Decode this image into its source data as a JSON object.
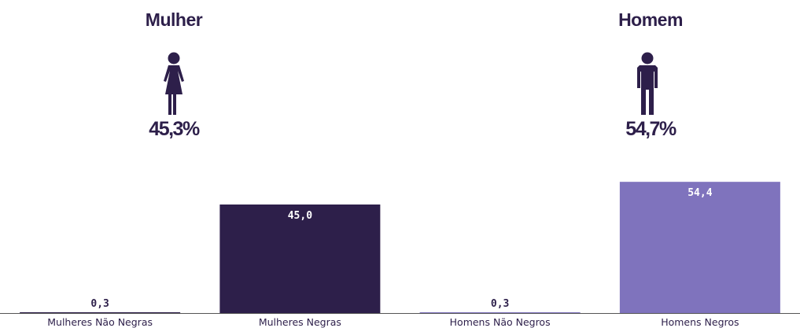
{
  "groups": [
    {
      "title": "Mulher",
      "icon": "woman-icon",
      "pct": "45,3%"
    },
    {
      "title": "Homem",
      "icon": "man-icon",
      "pct": "54,7%"
    }
  ],
  "colors": {
    "dark": "#2d1f4a",
    "light": "#7f73bd",
    "axis": "#555555"
  },
  "chart_data": {
    "type": "bar",
    "categories": [
      "Mulheres Não Negras",
      "Mulheres Negras",
      "Homens Não Negros",
      "Homens Negros"
    ],
    "values": [
      0.3,
      45.0,
      0.3,
      54.4
    ],
    "value_labels": [
      "0,3",
      "45,0",
      "0,3",
      "54,4"
    ],
    "bar_colors": [
      "#2d1f4a",
      "#2d1f4a",
      "#7f73bd",
      "#7f73bd"
    ],
    "ylim": [
      0,
      60
    ],
    "grid": false,
    "legend": "none"
  }
}
